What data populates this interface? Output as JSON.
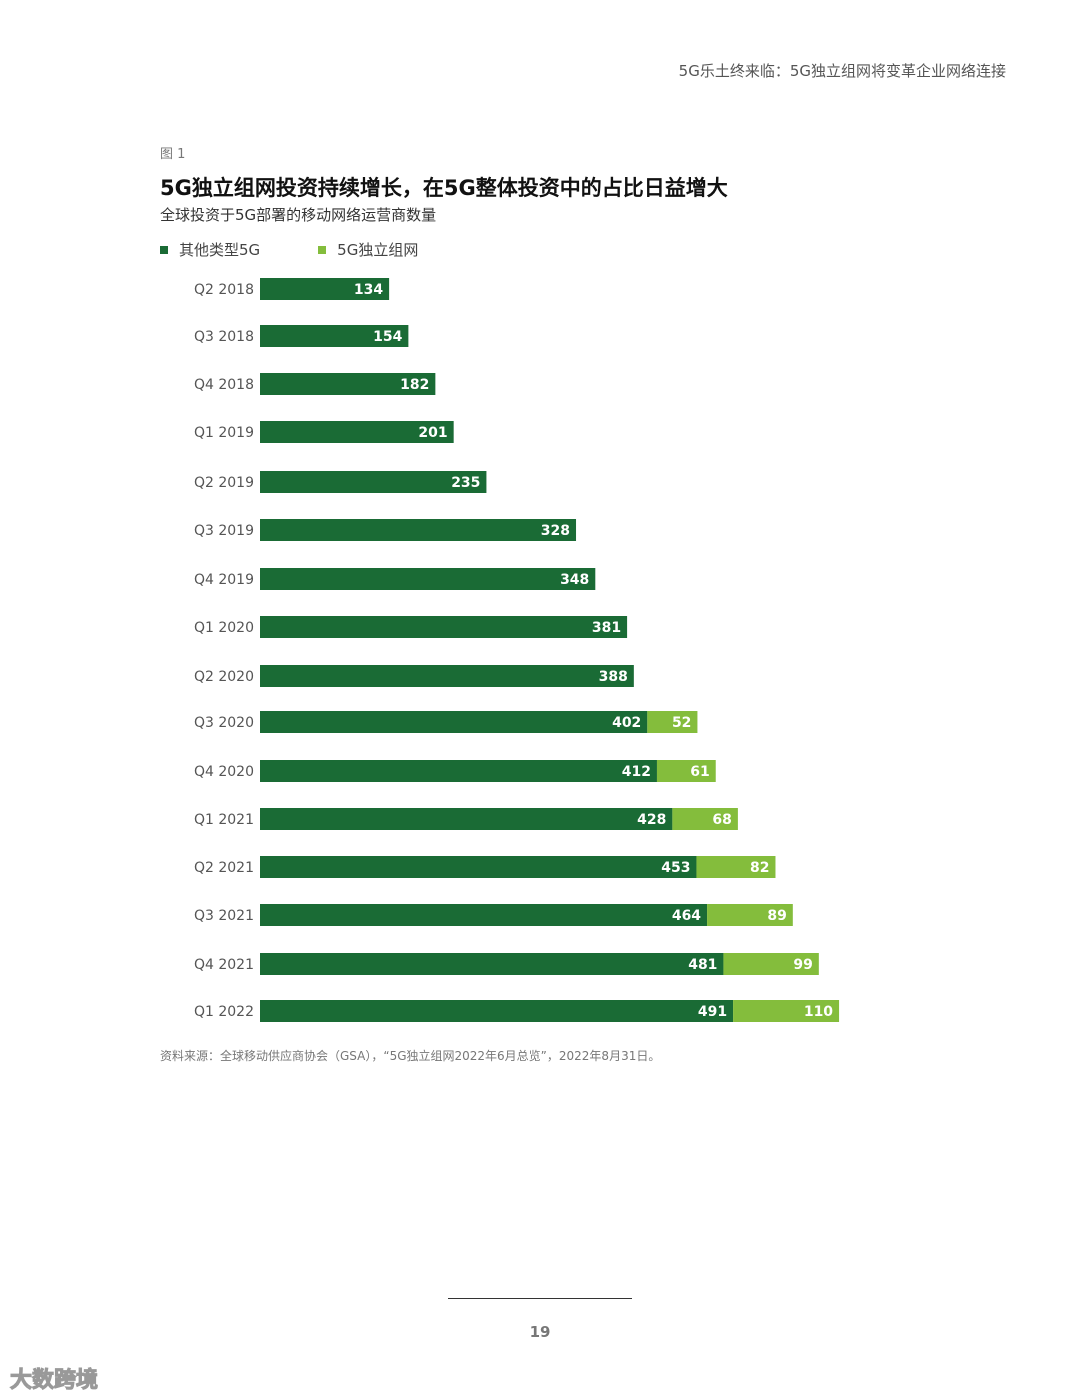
{
  "header": {
    "title": "5G乐土终来临：5G独立组网将变革企业网络连接"
  },
  "figure": {
    "label": "图 1"
  },
  "colors": {
    "dark": "#1a6b35",
    "light": "#84bd3c"
  },
  "chart_data": {
    "type": "bar",
    "orientation": "horizontal",
    "stacked": true,
    "title": "5G独立组网投资持续增长，在5G整体投资中的占比日益增大",
    "subtitle": "全球投资于5G部署的移动网络运营商数量",
    "legend_position": "top-left",
    "categories": [
      "Q2 2018",
      "Q3 2018",
      "Q4 2018",
      "Q1 2019",
      "Q2 2019",
      "Q3 2019",
      "Q4 2019",
      "Q1 2020",
      "Q2 2020",
      "Q3 2020",
      "Q4 2020",
      "Q1 2021",
      "Q2 2021",
      "Q3 2021",
      "Q4 2021",
      "Q1 2022"
    ],
    "series": [
      {
        "name": "其他类型5G",
        "values": [
          134,
          154,
          182,
          201,
          235,
          328,
          348,
          381,
          388,
          402,
          412,
          428,
          453,
          464,
          481,
          491
        ]
      },
      {
        "name": "5G独立组网",
        "values": [
          null,
          null,
          null,
          null,
          null,
          null,
          null,
          null,
          null,
          52,
          61,
          68,
          82,
          89,
          99,
          110
        ]
      }
    ],
    "grid": false
  },
  "source": "资料来源：全球移动供应商协会（GSA），“5G独立组网2022年6月总览”，2022年8月31日。",
  "page_number": "19",
  "watermark": "大数跨境"
}
